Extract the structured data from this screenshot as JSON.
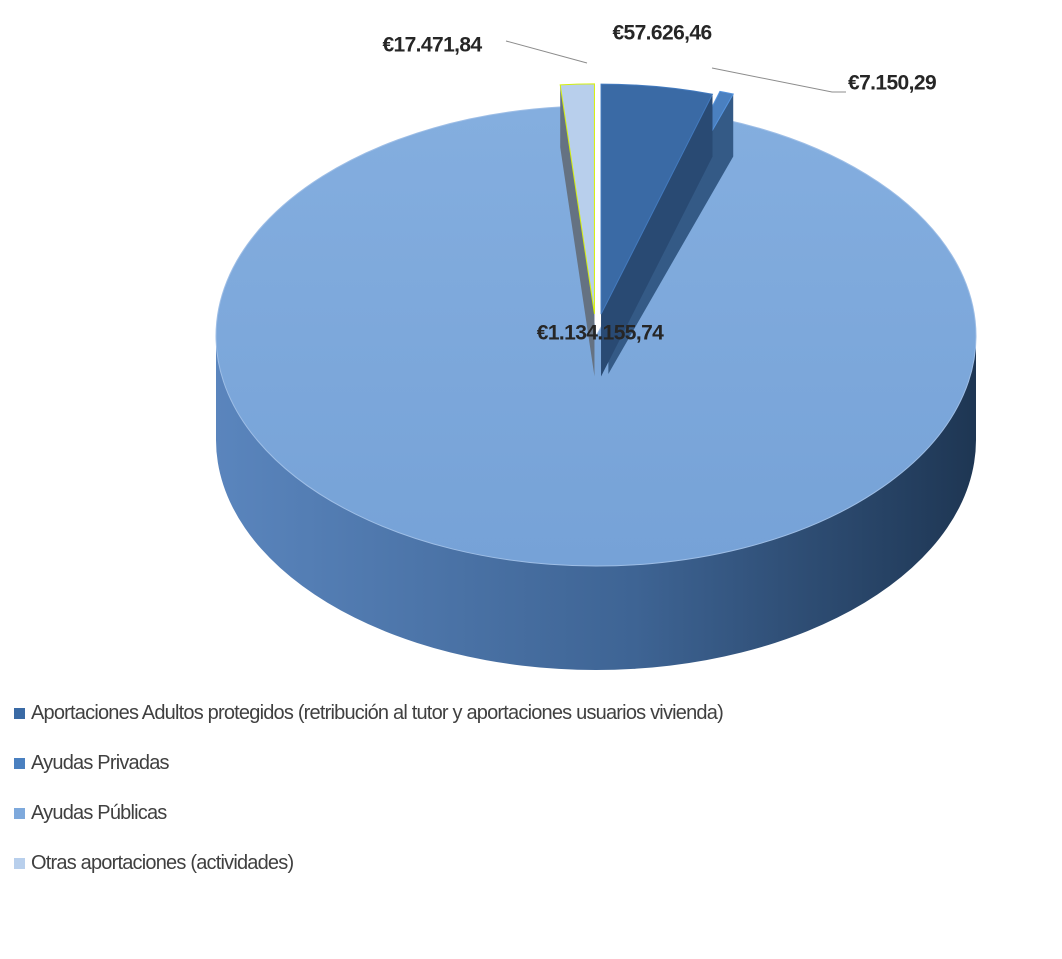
{
  "chart_data": {
    "type": "pie",
    "style": "3d-exploded",
    "legend_position": "bottom-left",
    "currency": "€",
    "slices": [
      {
        "name": "Aportaciones Adultos protegidos (retribución al tutor y aportaciones usuarios vivienda)",
        "value": 57626.46,
        "label": "€57.626,46",
        "color": "#3a6aa5"
      },
      {
        "name": "Ayudas Privadas",
        "value": 7150.29,
        "label": "€7.150,29",
        "color": "#4a80c0"
      },
      {
        "name": "Ayudas Públicas",
        "value": 1134155.74,
        "label": "€1.134.155,74",
        "color": "#7ea9dc"
      },
      {
        "name": "Otras aportaciones (actividades)",
        "value": 17471.84,
        "label": "€17.471,84",
        "color": "#b8cfec"
      }
    ]
  }
}
